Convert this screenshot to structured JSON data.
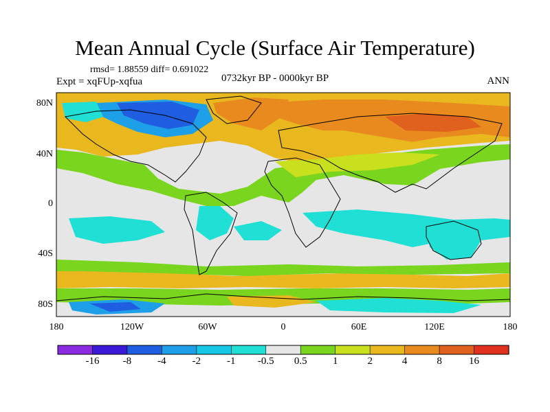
{
  "title": "Mean Annual Cycle (Surface Air Temperature)",
  "stats": "rmsd= 1.88559 diff= 0.691022",
  "experiment": "Expt = xqFUp-xqfua",
  "period": "0732kyr BP - 0000kyr BP",
  "season": "ANN",
  "lat_labels": [
    "80N",
    "40N",
    "0",
    "40S",
    "80S"
  ],
  "lon_labels": [
    "180",
    "120W",
    "60W",
    "0",
    "60E",
    "120E",
    "180"
  ],
  "colorbar": {
    "labels": [
      "-16",
      "-8",
      "-4",
      "-2",
      "-1",
      "-0.5",
      "0.5",
      "1",
      "2",
      "4",
      "8",
      "16"
    ],
    "colors": [
      "#8a2be2",
      "#3a1ad6",
      "#1f5ee0",
      "#1ea0e8",
      "#14c8e6",
      "#20e0d6",
      "#e6e6e6",
      "#7ad51e",
      "#c8e01e",
      "#e8b81e",
      "#e88a1e",
      "#e0601e",
      "#e0301e"
    ]
  },
  "palette": {
    "neutral": "#e6e6e6",
    "cyan": "#20e0d6",
    "lightblue": "#14c8e6",
    "blue": "#1ea0e8",
    "darkblue": "#1f5ee0",
    "green": "#7ad51e",
    "yellowgreen": "#c8e01e",
    "yellow": "#e8b81e",
    "orange": "#e88a1e",
    "darkorange": "#e0601e"
  }
}
